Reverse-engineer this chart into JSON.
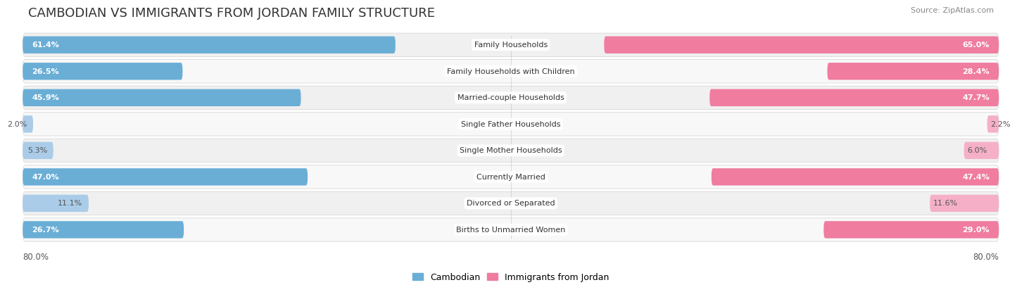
{
  "title": "CAMBODIAN VS IMMIGRANTS FROM JORDAN FAMILY STRUCTURE",
  "source": "Source: ZipAtlas.com",
  "categories": [
    "Family Households",
    "Family Households with Children",
    "Married-couple Households",
    "Single Father Households",
    "Single Mother Households",
    "Currently Married",
    "Divorced or Separated",
    "Births to Unmarried Women"
  ],
  "cambodian_values": [
    61.4,
    26.5,
    45.9,
    2.0,
    5.3,
    47.0,
    11.1,
    26.7
  ],
  "jordan_values": [
    65.0,
    28.4,
    47.7,
    2.2,
    6.0,
    47.4,
    11.6,
    29.0
  ],
  "max_value": 80.0,
  "cambodian_color_large": "#6aaed6",
  "cambodian_color_small": "#aacce8",
  "jordan_color_large": "#f07ca0",
  "jordan_color_small": "#f5b0c8",
  "row_color_odd": "#f0f0f0",
  "row_color_even": "#f8f8f8",
  "row_border_color": "#d8d8d8",
  "axis_label_left": "80.0%",
  "axis_label_right": "80.0%",
  "legend_cambodian": "Cambodian",
  "legend_jordan": "Immigrants from Jordan",
  "title_fontsize": 13,
  "label_fontsize": 8.0,
  "value_fontsize": 8.0,
  "large_threshold": 15
}
